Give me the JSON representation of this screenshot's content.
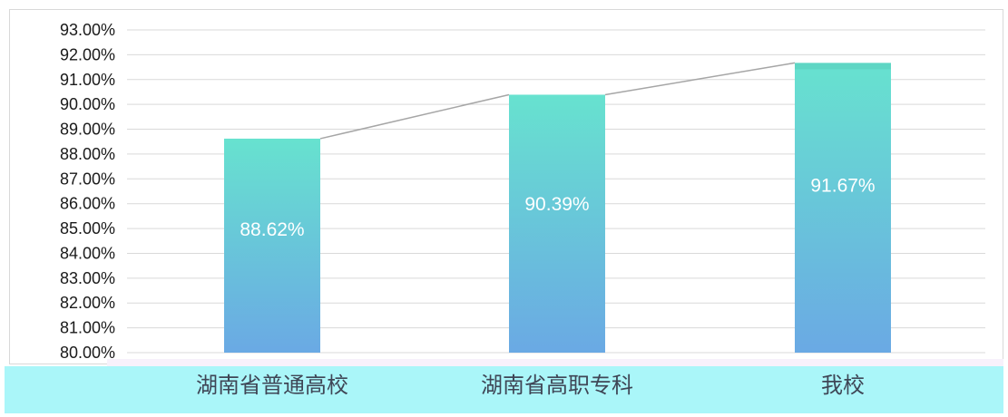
{
  "chart_data": {
    "type": "bar",
    "categories": [
      "湖南省普通高校",
      "湖南省高职专科",
      "我校"
    ],
    "values": [
      88.62,
      90.39,
      91.67
    ],
    "data_labels": [
      "88.62%",
      "90.39%",
      "91.67%"
    ],
    "ylim": [
      80,
      93
    ],
    "yticks": [
      "80.00%",
      "81.00%",
      "82.00%",
      "83.00%",
      "84.00%",
      "85.00%",
      "86.00%",
      "87.00%",
      "88.00%",
      "89.00%",
      "90.00%",
      "91.00%",
      "92.00%",
      "93.00%"
    ],
    "grid": true,
    "trend_line": true,
    "colors": {
      "bar_top": "#67e2cf",
      "bar_bottom": "#6aa9e4",
      "grid": "#d9d9d9",
      "trend": "#a6a6a6",
      "band": "#aaf6f9"
    }
  }
}
